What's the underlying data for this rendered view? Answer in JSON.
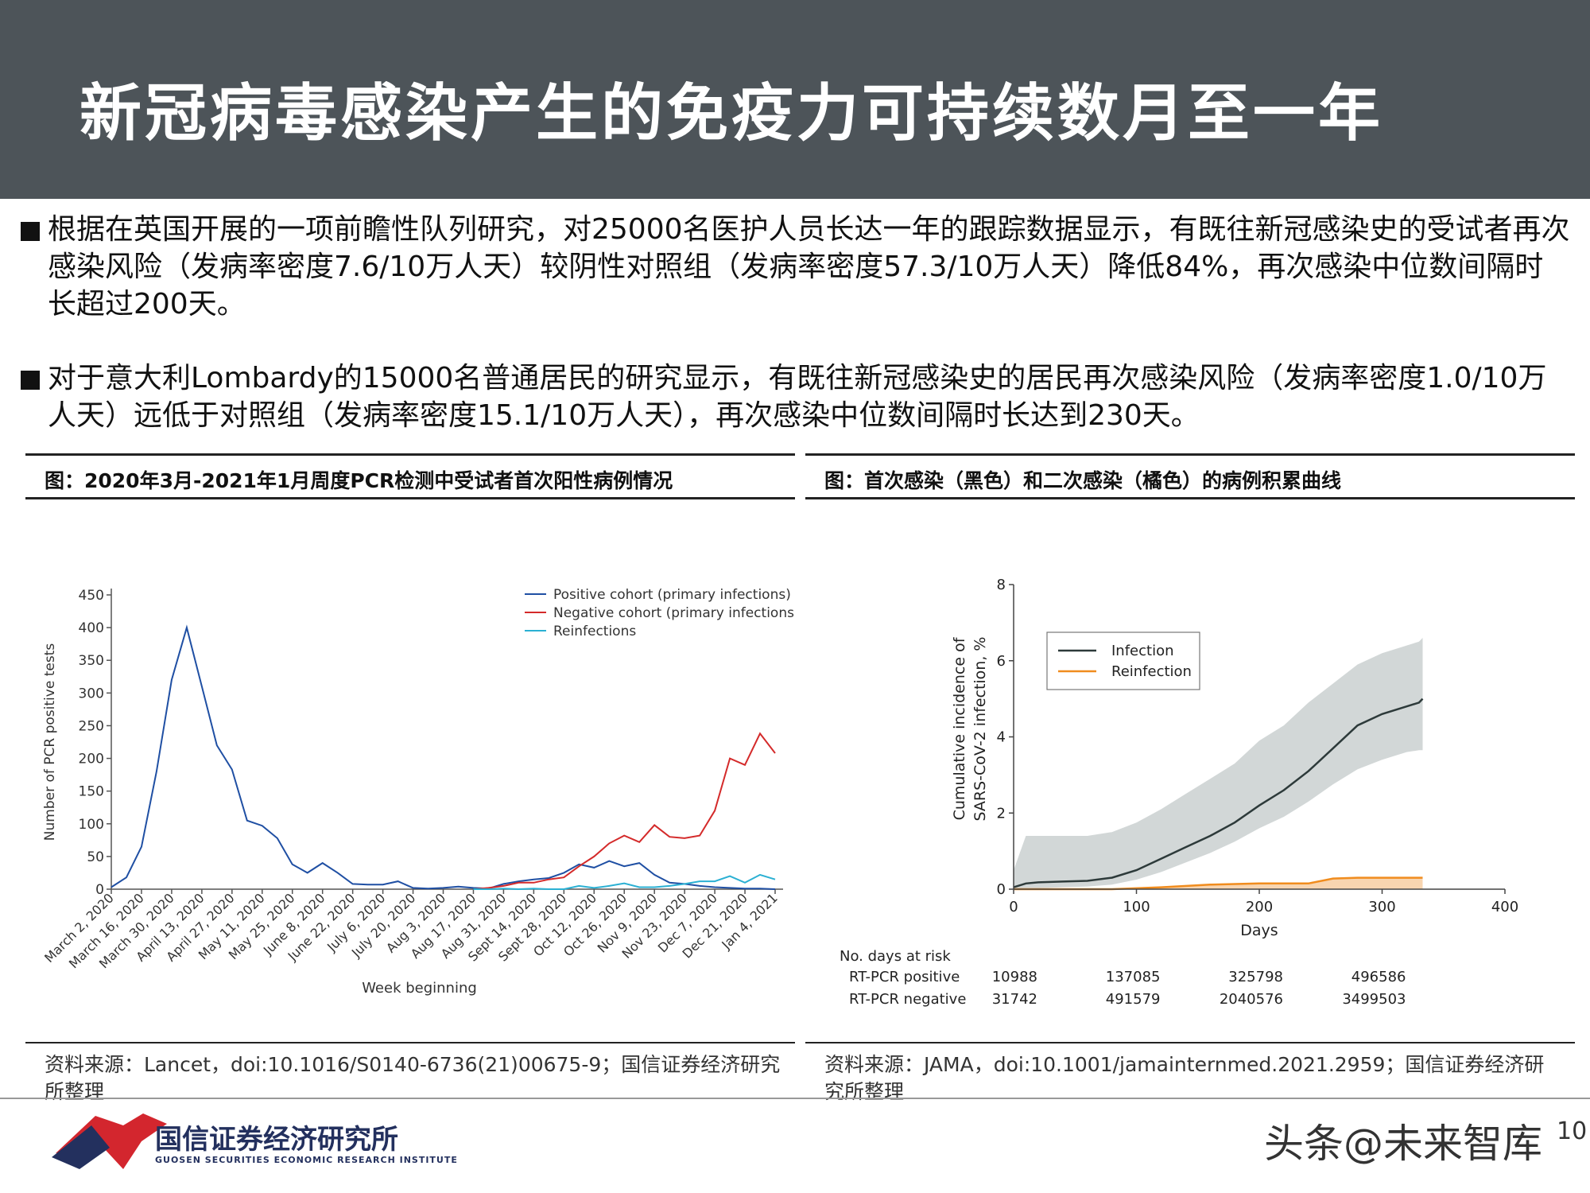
{
  "title": "新冠病毒感染产生的免疫力可持续数月至一年",
  "bullets": [
    "根据在英国开展的一项前瞻性队列研究，对25000名医护人员长达一年的跟踪数据显示，有既往新冠感染史的受试者再次感染风险（发病率密度7.6/10万人天）较阴性对照组（发病率密度57.3/10万人天）降低84%，再次感染中位数间隔时长超过200天。",
    "对于意大利Lombardy的15000名普通居民的研究显示，有既往新冠感染史的居民再次感染风险（发病率密度1.0/10万人天）远低于对照组（发病率密度15.1/10万人天），再次感染中位数间隔时长达到230天。"
  ],
  "left_panel": {
    "caption": "图：2020年3月-2021年1月周度PCR检测中受试者首次阳性病例情况",
    "source": "资料来源：Lancet，doi:10.1016/S0140-6736(21)00675-9；国信证券经济研究所整理"
  },
  "right_panel": {
    "caption": "图：首次感染（黑色）和二次感染（橘色）的病例积累曲线",
    "source": "资料来源：JAMA，doi:10.1001/jamainternmed.2021.2959；国信证券经济研究所整理"
  },
  "colors": {
    "header_bg": "#4d5459",
    "positive": "#1f4fa3",
    "negative": "#d42a2a",
    "reinfection_left": "#2bb0d3",
    "infection": "#2d3a3a",
    "reinfection_right": "#f08c1e",
    "ci_band": "#d2d7d7"
  },
  "chart_data": [
    {
      "type": "line",
      "xlabel": "Week beginning",
      "ylabel": "Number of PCR positive tests",
      "ylim": [
        0,
        450
      ],
      "yticks": [
        "0",
        "50",
        "100",
        "150",
        "200",
        "250",
        "300",
        "350",
        "400",
        "450"
      ],
      "x_ticks": [
        "March 2, 2020",
        "March 16, 2020",
        "March 30, 2020",
        "April 13, 2020",
        "April 27, 2020",
        "May 11, 2020",
        "May 25, 2020",
        "June 8, 2020",
        "June 22, 2020",
        "July 6, 2020",
        "July 20, 2020",
        "Aug 3, 2020",
        "Aug 17, 2020",
        "Aug 31, 2020",
        "Sept 14, 2020",
        "Sept 28, 2020",
        "Oct 12, 2020",
        "Oct 26, 2020",
        "Nov 9, 2020",
        "Nov 23, 2020",
        "Dec 7, 2020",
        "Dec 21, 2020",
        "Jan 4, 2021"
      ],
      "legend_position": "top-right",
      "series": [
        {
          "name": "Positive cohort (primary infections)",
          "values": [
            3,
            18,
            65,
            180,
            320,
            400,
            310,
            220,
            183,
            105,
            97,
            78,
            38,
            25,
            40,
            25,
            8,
            7,
            7,
            12,
            2,
            1,
            2,
            4,
            2,
            1,
            8,
            12,
            15,
            17,
            25,
            38,
            33,
            43,
            35,
            40,
            22,
            10,
            8,
            5,
            3,
            2,
            1,
            1,
            0
          ]
        },
        {
          "name": "Negative cohort (primary infections)",
          "values": [
            null,
            null,
            null,
            null,
            null,
            null,
            null,
            null,
            null,
            null,
            null,
            null,
            null,
            null,
            null,
            null,
            null,
            null,
            null,
            null,
            null,
            null,
            null,
            null,
            0,
            2,
            5,
            10,
            10,
            15,
            18,
            35,
            50,
            70,
            82,
            72,
            98,
            80,
            78,
            82,
            120,
            200,
            190,
            238,
            208
          ]
        },
        {
          "name": "Reinfections",
          "values": [
            null,
            null,
            null,
            null,
            null,
            null,
            null,
            null,
            null,
            null,
            null,
            null,
            null,
            null,
            null,
            null,
            null,
            null,
            null,
            null,
            null,
            null,
            null,
            null,
            0,
            0,
            1,
            0,
            1,
            0,
            0,
            5,
            2,
            5,
            9,
            3,
            3,
            5,
            8,
            12,
            12,
            20,
            10,
            22,
            15
          ]
        }
      ]
    },
    {
      "type": "line",
      "xlabel": "Days",
      "ylabel": [
        "Cumulative incidence of",
        "SARS-CoV-2 infection, %"
      ],
      "xlim": [
        0,
        400
      ],
      "ylim": [
        0,
        8
      ],
      "xticks": [
        "0",
        "100",
        "200",
        "300",
        "400"
      ],
      "yticks": [
        "0",
        "2",
        "4",
        "6",
        "8"
      ],
      "legend_position": "top-left",
      "series": [
        {
          "name": "Infection",
          "x": [
            0,
            10,
            20,
            40,
            60,
            80,
            100,
            120,
            140,
            160,
            180,
            200,
            220,
            240,
            260,
            280,
            300,
            320,
            330,
            333
          ],
          "y": [
            0.05,
            0.15,
            0.18,
            0.2,
            0.22,
            0.3,
            0.5,
            0.8,
            1.1,
            1.4,
            1.75,
            2.2,
            2.6,
            3.1,
            3.7,
            4.3,
            4.6,
            4.8,
            4.9,
            5.0
          ],
          "ci_lower": [
            0,
            0,
            0.02,
            0.05,
            0.07,
            0.12,
            0.25,
            0.45,
            0.7,
            0.95,
            1.25,
            1.6,
            1.9,
            2.3,
            2.75,
            3.15,
            3.4,
            3.6,
            3.65,
            3.65
          ],
          "ci_upper": [
            0.5,
            1.4,
            1.4,
            1.4,
            1.4,
            1.5,
            1.75,
            2.1,
            2.5,
            2.9,
            3.3,
            3.9,
            4.3,
            4.9,
            5.4,
            5.9,
            6.2,
            6.4,
            6.5,
            6.6
          ]
        },
        {
          "name": "Reinfection",
          "x": [
            0,
            80,
            120,
            160,
            200,
            240,
            260,
            280,
            300,
            320,
            333
          ],
          "y": [
            0,
            0,
            0.05,
            0.12,
            0.15,
            0.15,
            0.28,
            0.3,
            0.3,
            0.3,
            0.3
          ],
          "ci_lower": [
            0,
            0,
            0,
            0,
            0,
            0,
            0,
            0,
            0,
            0,
            0
          ]
        }
      ],
      "risk_table": {
        "header": "No. days at risk",
        "rows": [
          {
            "label": "RT-PCR positive",
            "values": [
              "10988",
              "137085",
              "325798",
              "496586"
            ]
          },
          {
            "label": "RT-PCR negative",
            "values": [
              "31742",
              "491579",
              "2040576",
              "3499503"
            ]
          }
        ]
      }
    }
  ],
  "footer": {
    "logo_name": "国信证券经济研究所",
    "logo_sub": "GUOSEN SECURITIES ECONOMIC RESEARCH INSTITUTE",
    "watermark": "头条@未来智库",
    "page": "10"
  }
}
